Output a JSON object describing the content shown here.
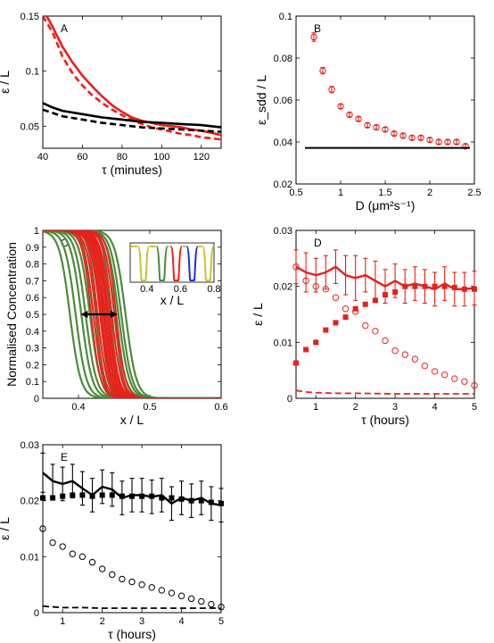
{
  "chart_data": [
    {
      "id": "A",
      "type": "line",
      "panel_label": "A",
      "xlabel": "τ (minutes)",
      "ylabel": "ε / L",
      "xlim": [
        40,
        130
      ],
      "ylim": [
        0.03,
        0.15
      ],
      "xticks": [
        "40",
        "60",
        "80",
        "100",
        "120"
      ],
      "yticks": [
        "0.05",
        "0.1",
        "0.15"
      ],
      "colors": {
        "red": "#e8201a",
        "black": "#000000"
      },
      "series": [
        {
          "color": "red",
          "style": "solid",
          "x": [
            42,
            45,
            50,
            55,
            60,
            65,
            70,
            75,
            80,
            85,
            90,
            95,
            100,
            105,
            110,
            115,
            120,
            125,
            130
          ],
          "y": [
            0.15,
            0.14,
            0.122,
            0.108,
            0.096,
            0.086,
            0.077,
            0.069,
            0.063,
            0.058,
            0.055,
            0.053,
            0.051,
            0.05,
            0.049,
            0.047,
            0.046,
            0.044,
            0.042
          ]
        },
        {
          "color": "red",
          "style": "dashed",
          "x": [
            40,
            45,
            50,
            55,
            60,
            65,
            70,
            75,
            80,
            85,
            90,
            95,
            100,
            105,
            110,
            115,
            120,
            125,
            130
          ],
          "y": [
            0.15,
            0.135,
            0.113,
            0.098,
            0.087,
            0.078,
            0.071,
            0.065,
            0.06,
            0.056,
            0.052,
            0.049,
            0.047,
            0.045,
            0.043,
            0.042,
            0.04,
            0.039,
            0.038
          ]
        },
        {
          "color": "black",
          "style": "solid",
          "x": [
            40,
            45,
            50,
            60,
            70,
            80,
            90,
            100,
            110,
            120,
            125,
            130
          ],
          "y": [
            0.071,
            0.067,
            0.064,
            0.061,
            0.058,
            0.056,
            0.054,
            0.053,
            0.052,
            0.051,
            0.05,
            0.049
          ]
        },
        {
          "color": "black",
          "style": "dashed",
          "x": [
            40,
            45,
            50,
            60,
            70,
            80,
            90,
            100,
            110,
            120,
            130
          ],
          "y": [
            0.065,
            0.062,
            0.059,
            0.056,
            0.053,
            0.051,
            0.049,
            0.048,
            0.047,
            0.046,
            0.045
          ]
        }
      ]
    },
    {
      "id": "B",
      "type": "scatter",
      "panel_label": "B",
      "xlabel": "D (μm²s⁻¹)",
      "ylabel": "ε_sdd / L",
      "xlim": [
        0.5,
        2.5
      ],
      "ylim": [
        0.02,
        0.1
      ],
      "xticks": [
        "0.5",
        "1",
        "1.5",
        "2",
        "2.5"
      ],
      "yticks": [
        "0.02",
        "0.04",
        "0.06",
        "0.08",
        "0.1"
      ],
      "series": [
        {
          "color": "red",
          "marker": "circle",
          "x": [
            0.7,
            0.8,
            0.9,
            1.0,
            1.1,
            1.2,
            1.3,
            1.4,
            1.5,
            1.6,
            1.7,
            1.8,
            1.9,
            2.0,
            2.1,
            2.2,
            2.3,
            2.4
          ],
          "y": [
            0.09,
            0.074,
            0.065,
            0.057,
            0.053,
            0.051,
            0.048,
            0.047,
            0.046,
            0.044,
            0.043,
            0.042,
            0.042,
            0.041,
            0.04,
            0.04,
            0.04,
            0.038
          ],
          "err": [
            0.002,
            0.0015,
            0.0015,
            0.001,
            0.001,
            0.001,
            0.001,
            0.001,
            0.001,
            0.001,
            0.001,
            0.001,
            0.001,
            0.001,
            0.001,
            0.001,
            0.001,
            0.001
          ]
        },
        {
          "color": "black",
          "style": "solid",
          "x": [
            0.6,
            2.45
          ],
          "y": [
            0.0372,
            0.0372
          ]
        }
      ]
    },
    {
      "id": "C",
      "type": "line",
      "panel_label": "C",
      "xlabel": "x / L",
      "ylabel": "Normalised Concentration",
      "xlim": [
        0.35,
        0.6
      ],
      "ylim": [
        0,
        1
      ],
      "xticks": [
        "0.4",
        "0.5",
        "0.6"
      ],
      "yticks": [
        "0",
        "0.1",
        "0.2",
        "0.3",
        "0.4",
        "0.5",
        "0.6",
        "0.7",
        "0.8",
        "0.9",
        "1"
      ],
      "green_centers": [
        0.388,
        0.396,
        0.404,
        0.41,
        0.416,
        0.421,
        0.426,
        0.431,
        0.436,
        0.441,
        0.446,
        0.451,
        0.456,
        0.46,
        0.466
      ],
      "red_centers": [
        0.418,
        0.421,
        0.424,
        0.427,
        0.43,
        0.432,
        0.434,
        0.436,
        0.438,
        0.44,
        0.442,
        0.444,
        0.447,
        0.45,
        0.453
      ],
      "arrow": {
        "x1": 0.403,
        "x2": 0.455,
        "y": 0.5
      },
      "inset": {
        "xlabel": "x / L",
        "xlim": [
          0.3,
          0.8
        ],
        "xticks": [
          "0.4",
          "0.6",
          "0.8"
        ],
        "dips": [
          {
            "x": 0.38,
            "color": "olive"
          },
          {
            "x": 0.49,
            "color": "green"
          },
          {
            "x": 0.575,
            "color": "red"
          },
          {
            "x": 0.67,
            "color": "blue"
          },
          {
            "x": 0.765,
            "color": "olive"
          }
        ]
      }
    },
    {
      "id": "D",
      "type": "line",
      "panel_label": "D",
      "xlabel": "τ (hours)",
      "ylabel": "ε / L",
      "xlim": [
        0.5,
        5
      ],
      "ylim": [
        0,
        0.03
      ],
      "xticks": [
        "1",
        "2",
        "3",
        "4",
        "5"
      ],
      "yticks": [
        "0",
        "0.01",
        "0.02",
        "0.03"
      ],
      "series": [
        {
          "color": "red",
          "style": "solid",
          "marker": "none",
          "x": [
            0.5,
            0.75,
            1.0,
            1.25,
            1.5,
            1.75,
            2.0,
            2.25,
            2.5,
            2.75,
            3.0,
            3.25,
            3.5,
            3.75,
            4.0,
            4.25,
            4.5,
            4.75,
            5.0
          ],
          "y": [
            0.0235,
            0.0225,
            0.022,
            0.0225,
            0.0235,
            0.022,
            0.0215,
            0.022,
            0.021,
            0.02,
            0.021,
            0.02,
            0.0205,
            0.02,
            0.0195,
            0.0205,
            0.0195,
            0.0195,
            0.0197
          ],
          "err": [
            0.003,
            0.0035,
            0.003,
            0.003,
            0.003,
            0.0035,
            0.004,
            0.003,
            0.0035,
            0.003,
            0.003,
            0.003,
            0.003,
            0.003,
            0.003,
            0.003,
            0.003,
            0.003,
            0.003
          ]
        },
        {
          "color": "red",
          "marker": "square",
          "x": [
            0.5,
            0.75,
            1.0,
            1.25,
            1.5,
            1.75,
            2.0,
            2.25,
            2.5,
            2.75,
            3.0,
            3.25,
            3.5,
            3.75,
            4.0,
            4.25,
            4.5,
            4.75,
            5.0
          ],
          "y": [
            0.0063,
            0.0087,
            0.01,
            0.0122,
            0.0135,
            0.0145,
            0.016,
            0.0168,
            0.0175,
            0.0185,
            0.019,
            0.02,
            0.02,
            0.02,
            0.02,
            0.02,
            0.0198,
            0.0195,
            0.0195
          ]
        },
        {
          "color": "red",
          "marker": "circle",
          "x": [
            0.5,
            0.75,
            1.0,
            1.25,
            1.5,
            1.75,
            2.0,
            2.25,
            2.5,
            2.75,
            3.0,
            3.25,
            3.5,
            3.75,
            4.0,
            4.25,
            4.5,
            4.75,
            5.0
          ],
          "y": [
            0.0235,
            0.021,
            0.02,
            0.0195,
            0.018,
            0.016,
            0.0155,
            0.013,
            0.012,
            0.0103,
            0.0085,
            0.0078,
            0.007,
            0.0058,
            0.0048,
            0.0042,
            0.0035,
            0.003,
            0.0023
          ]
        },
        {
          "color": "red",
          "style": "dashed",
          "x": [
            0.5,
            0.6,
            0.8,
            1.0,
            1.5,
            2.0,
            3.0,
            4.0,
            5.0
          ],
          "y": [
            0.0014,
            0.0013,
            0.0011,
            0.001,
            0.0009,
            0.0009,
            0.0008,
            0.0008,
            0.0008
          ]
        }
      ]
    },
    {
      "id": "E",
      "type": "line",
      "panel_label": "E",
      "xlabel": "τ (hours)",
      "ylabel": "ε / L",
      "xlim": [
        0.5,
        5
      ],
      "ylim": [
        0,
        0.03
      ],
      "xticks": [
        "1",
        "2",
        "3",
        "4",
        "5"
      ],
      "yticks": [
        "0",
        "0.01",
        "0.02",
        "0.03"
      ],
      "series": [
        {
          "color": "black",
          "style": "solid",
          "marker": "none",
          "x": [
            0.5,
            0.75,
            1.0,
            1.25,
            1.5,
            1.75,
            2.0,
            2.25,
            2.5,
            2.75,
            3.0,
            3.25,
            3.5,
            3.75,
            4.0,
            4.25,
            4.5,
            4.75,
            5.0
          ],
          "y": [
            0.025,
            0.0235,
            0.023,
            0.0235,
            0.0222,
            0.021,
            0.0225,
            0.022,
            0.0205,
            0.021,
            0.021,
            0.0207,
            0.021,
            0.0195,
            0.0205,
            0.02,
            0.0205,
            0.0195,
            0.0192
          ],
          "err": [
            0.0035,
            0.003,
            0.003,
            0.003,
            0.003,
            0.003,
            0.003,
            0.003,
            0.003,
            0.003,
            0.003,
            0.003,
            0.003,
            0.003,
            0.003,
            0.003,
            0.003,
            0.003,
            0.003
          ]
        },
        {
          "color": "black",
          "marker": "square",
          "x": [
            0.5,
            0.75,
            1.0,
            1.25,
            1.5,
            1.75,
            2.0,
            2.25,
            2.5,
            2.75,
            3.0,
            3.25,
            3.5,
            3.75,
            4.0,
            4.25,
            4.5,
            4.75,
            5.0
          ],
          "y": [
            0.0205,
            0.0205,
            0.0208,
            0.021,
            0.021,
            0.0208,
            0.021,
            0.021,
            0.0208,
            0.0208,
            0.0208,
            0.0208,
            0.0205,
            0.0205,
            0.0203,
            0.02,
            0.02,
            0.0197,
            0.0195
          ]
        },
        {
          "color": "black",
          "marker": "circle",
          "x": [
            0.5,
            0.75,
            1.0,
            1.25,
            1.5,
            1.75,
            2.0,
            2.25,
            2.5,
            2.75,
            3.0,
            3.25,
            3.5,
            3.75,
            4.0,
            4.25,
            4.5,
            4.75,
            5.0
          ],
          "y": [
            0.015,
            0.0125,
            0.0118,
            0.0105,
            0.01,
            0.009,
            0.0078,
            0.0068,
            0.006,
            0.0055,
            0.005,
            0.0045,
            0.004,
            0.0035,
            0.003,
            0.0025,
            0.002,
            0.0015,
            0.001
          ]
        },
        {
          "color": "black",
          "style": "dashed",
          "x": [
            0.5,
            0.6,
            0.8,
            1.0,
            1.5,
            2.0,
            3.0,
            4.0,
            5.0
          ],
          "y": [
            0.0012,
            0.0011,
            0.001,
            0.0009,
            0.0009,
            0.0008,
            0.0008,
            0.0008,
            0.0008
          ]
        }
      ]
    }
  ]
}
